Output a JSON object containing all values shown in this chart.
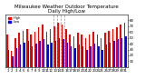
{
  "title": "Milwaukee Weather Outdoor Temperature\nDaily High/Low",
  "title_fontsize": 4.0,
  "background_color": "#ffffff",
  "bar_color_high": "#ff0000",
  "bar_color_low": "#0000ff",
  "legend_high": "High",
  "legend_low": "Low",
  "days": [
    1,
    2,
    3,
    4,
    5,
    6,
    7,
    8,
    9,
    10,
    11,
    12,
    13,
    14,
    15,
    16,
    17,
    18,
    19,
    20,
    21,
    22,
    23,
    24,
    25,
    26,
    27,
    28,
    29,
    30,
    31
  ],
  "highs": [
    55,
    28,
    50,
    58,
    62,
    65,
    55,
    60,
    68,
    72,
    60,
    65,
    70,
    75,
    72,
    65,
    55,
    52,
    58,
    55,
    50,
    55,
    60,
    55,
    50,
    58,
    62,
    65,
    68,
    72,
    75
  ],
  "lows": [
    30,
    18,
    32,
    38,
    42,
    45,
    35,
    40,
    45,
    48,
    38,
    42,
    45,
    50,
    48,
    42,
    35,
    32,
    38,
    35,
    30,
    35,
    40,
    35,
    30,
    38,
    42,
    45,
    48,
    50,
    52
  ],
  "ylim": [
    0,
    90
  ],
  "yticks": [
    10,
    20,
    30,
    40,
    50,
    60,
    70,
    80
  ],
  "tick_fontsize": 2.8,
  "bar_width": 0.35,
  "dashed_cols": [
    12,
    13,
    14,
    15
  ]
}
